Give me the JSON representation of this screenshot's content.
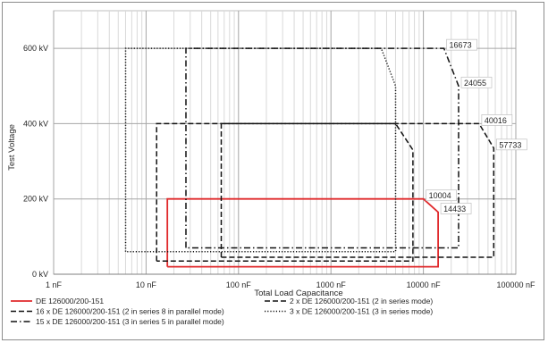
{
  "chart_data": {
    "type": "line",
    "title": "",
    "xlabel": "Total Load Capacitance",
    "ylabel": "Test Voltage",
    "x_scale": "log",
    "xlim_nF": [
      1,
      100000
    ],
    "ylim_kV": [
      0,
      700
    ],
    "x_ticks": [
      {
        "value": 1,
        "label": "1 nF"
      },
      {
        "value": 10,
        "label": "10 nF"
      },
      {
        "value": 100,
        "label": "100 nF"
      },
      {
        "value": 1000,
        "label": "1000 nF"
      },
      {
        "value": 10000,
        "label": "10000 nF"
      },
      {
        "value": 100000,
        "label": "100000 nF"
      }
    ],
    "y_ticks": [
      {
        "value": 0,
        "label": "0 kV"
      },
      {
        "value": 200,
        "label": "200 kV"
      },
      {
        "value": 400,
        "label": "400 kV"
      },
      {
        "value": 600,
        "label": "600 kV"
      }
    ],
    "grid": {
      "major": true,
      "minor_x": true
    },
    "legend_position": "bottom",
    "series": [
      {
        "name": "DE 126000/200-151",
        "color": "#e0292b",
        "style": "solid",
        "points": [
          [
            17,
            20
          ],
          [
            17,
            200
          ],
          [
            10004,
            200
          ],
          [
            14433,
            165
          ],
          [
            14433,
            20
          ],
          [
            17,
            20
          ]
        ]
      },
      {
        "name": "2 x DE 126000/200-151 (2 in series mode)",
        "color": "#111111",
        "style": "dash",
        "points": [
          [
            65,
            45
          ],
          [
            65,
            400
          ],
          [
            40016,
            400
          ],
          [
            57733,
            335
          ],
          [
            57733,
            45
          ],
          [
            65,
            45
          ]
        ]
      },
      {
        "name": "16 x DE 126000/200-151 (2 in series 8 in parallel mode)",
        "color": "#111111",
        "style": "dash",
        "points": [
          [
            13,
            35
          ],
          [
            13,
            400
          ],
          [
            5000,
            400
          ],
          [
            7700,
            330
          ],
          [
            7700,
            35
          ],
          [
            13,
            35
          ]
        ]
      },
      {
        "name": "3 x DE 126000/200-151 (3 in series mode)",
        "color": "#111111",
        "style": "dot",
        "points": [
          [
            6,
            60
          ],
          [
            6,
            600
          ],
          [
            3500,
            600
          ],
          [
            5000,
            500
          ],
          [
            5000,
            60
          ],
          [
            6,
            60
          ]
        ]
      },
      {
        "name": "15 x DE 126000/200-151 (3 in series 5 in parallel mode)",
        "color": "#111111",
        "style": "dashdot",
        "points": [
          [
            27,
            70
          ],
          [
            27,
            600
          ],
          [
            16673,
            600
          ],
          [
            24055,
            500
          ],
          [
            24055,
            70
          ],
          [
            27,
            70
          ]
        ]
      }
    ],
    "annotations": [
      {
        "label": "16673",
        "x": 16673,
        "y": 600
      },
      {
        "label": "24055",
        "x": 24055,
        "y": 500
      },
      {
        "label": "40016",
        "x": 40016,
        "y": 400
      },
      {
        "label": "57733",
        "x": 57733,
        "y": 335
      },
      {
        "label": "10004",
        "x": 10004,
        "y": 200
      },
      {
        "label": "14433",
        "x": 14433,
        "y": 165
      }
    ]
  }
}
